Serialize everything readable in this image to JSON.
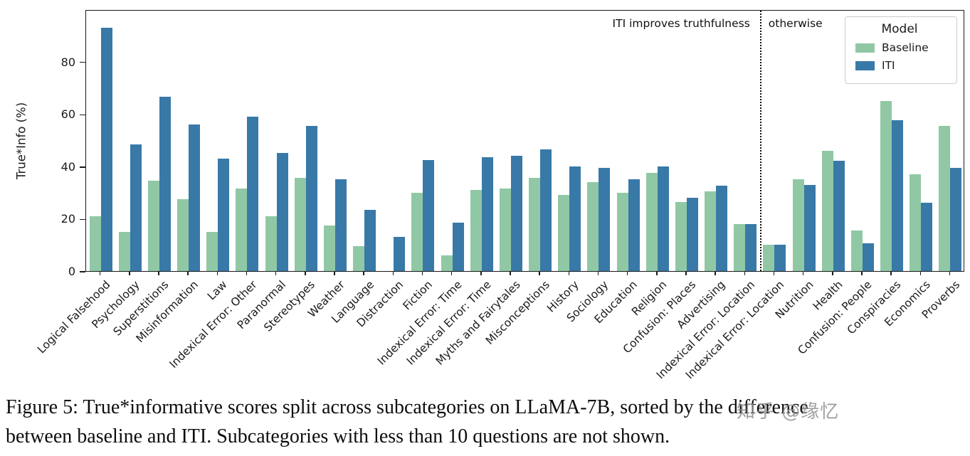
{
  "chart_data": {
    "type": "bar",
    "title": "",
    "ylabel": "True*Info (%)",
    "xlabel": "",
    "ylim": [
      0,
      100
    ],
    "yticks": [
      0,
      20,
      40,
      60,
      80
    ],
    "grid": false,
    "legend": {
      "title": "Model",
      "position": "upper right"
    },
    "categories": [
      "Logical Falsehood",
      "Psychology",
      "Superstitions",
      "Misinformation",
      "Law",
      "Indexical Error: Other",
      "Paranormal",
      "Stereotypes",
      "Weather",
      "Language",
      "Distraction",
      "Fiction",
      "Indexical Error: Time",
      "Indexical Error: Time",
      "Myths and Fairytales",
      "Misconceptions",
      "History",
      "Sociology",
      "Education",
      "Religion",
      "Confusion: Places",
      "Advertising",
      "Indexical Error: Location",
      "Indexical Error: Location",
      "Nutrition",
      "Health",
      "Confusion: People",
      "Conspiracies",
      "Economics",
      "Proverbs"
    ],
    "series": [
      {
        "name": "Baseline",
        "color": "#90c8a5",
        "values": [
          21,
          15,
          34.5,
          27.5,
          15,
          31.5,
          21,
          35.5,
          17.5,
          9.5,
          0,
          30,
          6,
          31,
          31.5,
          35.5,
          29,
          34,
          30,
          37.5,
          26.5,
          30.5,
          18,
          10,
          35,
          46,
          15.5,
          65,
          37,
          55.5
        ]
      },
      {
        "name": "ITI",
        "color": "#3879a8",
        "values": [
          93,
          48.5,
          66.5,
          56,
          43,
          59,
          45,
          55.5,
          35,
          23.5,
          13,
          42.5,
          18.5,
          43.5,
          44,
          46.5,
          40,
          39.5,
          35,
          40,
          28,
          32.5,
          18,
          10,
          33,
          42,
          10.5,
          57.5,
          26,
          39.5
        ]
      }
    ],
    "divider": {
      "style": "vertical-dotted",
      "after_category_index": 22,
      "left_label": "ITI improves truthfulness",
      "right_label": "otherwise"
    }
  },
  "caption": {
    "line1": "Figure 5: True*informative scores split across subcategories on LLaMA-7B, sorted by the difference",
    "line2": "between baseline and ITI. Subcategories with less than 10 questions are not shown."
  },
  "watermark": {
    "text": "知乎 @缘忆",
    "color": "#909090"
  }
}
